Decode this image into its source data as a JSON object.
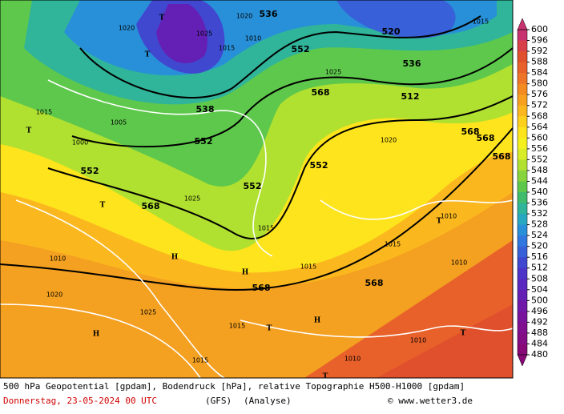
{
  "footer": {
    "line1": "500 hPa Geopotential [gpdam], Bodendruck [hPa], relative Topographie H500-H1000 [gpdam]",
    "date": "Donnerstag, 23-05-2024  00 UTC",
    "model": "(GFS)",
    "run": "(Analyse)",
    "credit": "© www.wetter3.de"
  },
  "colorbar": {
    "ticks": [
      600,
      596,
      592,
      588,
      584,
      580,
      576,
      572,
      568,
      564,
      560,
      556,
      552,
      548,
      544,
      540,
      536,
      532,
      528,
      524,
      520,
      516,
      512,
      508,
      504,
      500,
      496,
      492,
      488,
      484,
      480
    ],
    "colors": [
      "#c8326e",
      "#d8404a",
      "#e0502c",
      "#e8602a",
      "#ee7428",
      "#f48a22",
      "#f8a020",
      "#fbb81e",
      "#fdd01e",
      "#fde41c",
      "#f4f01e",
      "#d8ec28",
      "#b0e030",
      "#88d43c",
      "#5ec84c",
      "#40bc6c",
      "#30b49a",
      "#28a8c0",
      "#2890d8",
      "#3078e0",
      "#3860d8",
      "#4048d0",
      "#4c34c8",
      "#5828c0",
      "#6420b4",
      "#7018a8",
      "#78149c",
      "#801090",
      "#840c84",
      "#880878"
    ]
  },
  "map_labels": [
    "536",
    "520",
    "552",
    "536",
    "512",
    "568",
    "552",
    "538",
    "552",
    "552",
    "568",
    "552",
    "568",
    "568",
    "568",
    "568",
    "568",
    "1020",
    "1025",
    "1015",
    "1010",
    "1005",
    "1000",
    "1015",
    "1020",
    "1025",
    "1015",
    "1010",
    "1020",
    "1025",
    "1015",
    "1010",
    "1015",
    "1010",
    "1015",
    "1020",
    "1025",
    "1015",
    "1010",
    "1010",
    "1015",
    "T",
    "T",
    "T",
    "T",
    "H",
    "H",
    "H",
    "H",
    "T",
    "T",
    "T",
    "T"
  ]
}
